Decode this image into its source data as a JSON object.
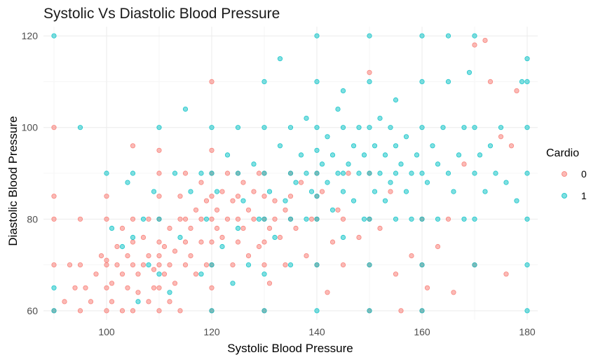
{
  "chart_data": {
    "type": "scatter",
    "title": "Systolic Vs Diastolic Blood Pressure",
    "xlabel": "Systolic Blood Pressure",
    "ylabel": "Diastolic Blood Pressure",
    "xlim": [
      88,
      182
    ],
    "ylim": [
      58,
      122
    ],
    "x_ticks": [
      100,
      120,
      140,
      160,
      180
    ],
    "y_ticks": [
      60,
      80,
      100,
      120
    ],
    "x_tick_labels": [
      "100",
      "120",
      "140",
      "160",
      "180"
    ],
    "y_tick_labels": [
      "60",
      "80",
      "100",
      "120"
    ],
    "grid": true,
    "legend": {
      "title": "Cardio",
      "position": "right",
      "entries": [
        {
          "label": "0",
          "color": "#F8766D"
        },
        {
          "label": "1",
          "color": "#00BFC4"
        }
      ]
    },
    "series": [
      {
        "name": "0",
        "color": "#F8766D",
        "points": [
          [
            90,
            60
          ],
          [
            90,
            70
          ],
          [
            90,
            80
          ],
          [
            90,
            85
          ],
          [
            90,
            100
          ],
          [
            92,
            62
          ],
          [
            93,
            70
          ],
          [
            94,
            65
          ],
          [
            95,
            60
          ],
          [
            95,
            70
          ],
          [
            95,
            80
          ],
          [
            96,
            65
          ],
          [
            97,
            62
          ],
          [
            98,
            68
          ],
          [
            99,
            72
          ],
          [
            100,
            60
          ],
          [
            100,
            65
          ],
          [
            100,
            70
          ],
          [
            100,
            71
          ],
          [
            100,
            80
          ],
          [
            100,
            85
          ],
          [
            101,
            62
          ],
          [
            101,
            66
          ],
          [
            102,
            70
          ],
          [
            102,
            74
          ],
          [
            103,
            60
          ],
          [
            103,
            68
          ],
          [
            103,
            78
          ],
          [
            104,
            65
          ],
          [
            104,
            72
          ],
          [
            105,
            60
          ],
          [
            105,
            70
          ],
          [
            105,
            75
          ],
          [
            105,
            80
          ],
          [
            105,
            96
          ],
          [
            106,
            64
          ],
          [
            106,
            68
          ],
          [
            107,
            70
          ],
          [
            107,
            76
          ],
          [
            108,
            62
          ],
          [
            108,
            72
          ],
          [
            108,
            80
          ],
          [
            109,
            65
          ],
          [
            109,
            69
          ],
          [
            110,
            60
          ],
          [
            110,
            65
          ],
          [
            110,
            70
          ],
          [
            110,
            72
          ],
          [
            110,
            75
          ],
          [
            110,
            80
          ],
          [
            110,
            85
          ],
          [
            110,
            90
          ],
          [
            110,
            95
          ],
          [
            111,
            68
          ],
          [
            111,
            74
          ],
          [
            112,
            62
          ],
          [
            112,
            70
          ],
          [
            112,
            78
          ],
          [
            113,
            66
          ],
          [
            113,
            73
          ],
          [
            114,
            60
          ],
          [
            114,
            80
          ],
          [
            114,
            85
          ],
          [
            115,
            70
          ],
          [
            115,
            75
          ],
          [
            115,
            80
          ],
          [
            115,
            90
          ],
          [
            116,
            72
          ],
          [
            116,
            78
          ],
          [
            117,
            68
          ],
          [
            117,
            82
          ],
          [
            118,
            75
          ],
          [
            118,
            80
          ],
          [
            118,
            88
          ],
          [
            119,
            70
          ],
          [
            119,
            84
          ],
          [
            120,
            60
          ],
          [
            120,
            65
          ],
          [
            120,
            70
          ],
          [
            120,
            75
          ],
          [
            120,
            80
          ],
          [
            120,
            85
          ],
          [
            120,
            90
          ],
          [
            120,
            95
          ],
          [
            120,
            110
          ],
          [
            121,
            78
          ],
          [
            121,
            82
          ],
          [
            122,
            76
          ],
          [
            122,
            86
          ],
          [
            123,
            80
          ],
          [
            123,
            90
          ],
          [
            124,
            70
          ],
          [
            124,
            84
          ],
          [
            125,
            75
          ],
          [
            125,
            80
          ],
          [
            125,
            85
          ],
          [
            125,
            90
          ],
          [
            126,
            78
          ],
          [
            126,
            88
          ],
          [
            127,
            72
          ],
          [
            127,
            82
          ],
          [
            128,
            80
          ],
          [
            128,
            86
          ],
          [
            129,
            74
          ],
          [
            129,
            90
          ],
          [
            130,
            60
          ],
          [
            130,
            70
          ],
          [
            130,
            75
          ],
          [
            130,
            80
          ],
          [
            130,
            85
          ],
          [
            130,
            90
          ],
          [
            131,
            66
          ],
          [
            131,
            78
          ],
          [
            132,
            80
          ],
          [
            132,
            84
          ],
          [
            133,
            76
          ],
          [
            134,
            70
          ],
          [
            134,
            82
          ],
          [
            135,
            80
          ],
          [
            135,
            85
          ],
          [
            135,
            90
          ],
          [
            136,
            78
          ],
          [
            137,
            88
          ],
          [
            138,
            72
          ],
          [
            139,
            80
          ],
          [
            140,
            70
          ],
          [
            140,
            80
          ],
          [
            140,
            85
          ],
          [
            140,
            90
          ],
          [
            141,
            86
          ],
          [
            142,
            64
          ],
          [
            143,
            75
          ],
          [
            144,
            82
          ],
          [
            145,
            70
          ],
          [
            145,
            80
          ],
          [
            146,
            90
          ],
          [
            148,
            76
          ],
          [
            150,
            60
          ],
          [
            150,
            70
          ],
          [
            150,
            80
          ],
          [
            150,
            90
          ],
          [
            150,
            112
          ],
          [
            152,
            78
          ],
          [
            154,
            86
          ],
          [
            155,
            68
          ],
          [
            156,
            60
          ],
          [
            158,
            72
          ],
          [
            160,
            60
          ],
          [
            160,
            70
          ],
          [
            160,
            80
          ],
          [
            161,
            65
          ],
          [
            163,
            74
          ],
          [
            165,
            80
          ],
          [
            166,
            64
          ],
          [
            168,
            92
          ],
          [
            170,
            70
          ],
          [
            170,
            118
          ],
          [
            172,
            119
          ],
          [
            173,
            110
          ],
          [
            175,
            98
          ],
          [
            176,
            68
          ],
          [
            177,
            96
          ],
          [
            178,
            108
          ]
        ]
      },
      {
        "name": "1",
        "color": "#00BFC4",
        "points": [
          [
            90,
            60
          ],
          [
            90,
            65
          ],
          [
            90,
            120
          ],
          [
            95,
            100
          ],
          [
            100,
            90
          ],
          [
            101,
            78
          ],
          [
            103,
            74
          ],
          [
            104,
            88
          ],
          [
            105,
            76
          ],
          [
            105,
            90
          ],
          [
            106,
            62
          ],
          [
            107,
            80
          ],
          [
            108,
            70
          ],
          [
            109,
            86
          ],
          [
            110,
            68
          ],
          [
            110,
            80
          ],
          [
            110,
            100
          ],
          [
            112,
            64
          ],
          [
            113,
            90
          ],
          [
            114,
            76
          ],
          [
            115,
            104
          ],
          [
            116,
            86
          ],
          [
            118,
            68
          ],
          [
            118,
            90
          ],
          [
            119,
            80
          ],
          [
            120,
            60
          ],
          [
            120,
            70
          ],
          [
            120,
            90
          ],
          [
            120,
            100
          ],
          [
            121,
            86
          ],
          [
            122,
            74
          ],
          [
            123,
            94
          ],
          [
            124,
            66
          ],
          [
            125,
            78
          ],
          [
            125,
            90
          ],
          [
            125,
            100
          ],
          [
            126,
            84
          ],
          [
            127,
            70
          ],
          [
            128,
            92
          ],
          [
            129,
            80
          ],
          [
            130,
            60
          ],
          [
            130,
            68
          ],
          [
            130,
            80
          ],
          [
            130,
            90
          ],
          [
            130,
            100
          ],
          [
            130,
            110
          ],
          [
            131,
            86
          ],
          [
            132,
            76
          ],
          [
            133,
            96
          ],
          [
            133,
            115
          ],
          [
            134,
            84
          ],
          [
            135,
            70
          ],
          [
            135,
            80
          ],
          [
            135,
            90
          ],
          [
            135,
            100
          ],
          [
            136,
            88
          ],
          [
            137,
            94
          ],
          [
            138,
            80
          ],
          [
            138,
            90
          ],
          [
            138,
            102
          ],
          [
            139,
            86
          ],
          [
            140,
            60
          ],
          [
            140,
            70
          ],
          [
            140,
            80
          ],
          [
            140,
            85
          ],
          [
            140,
            90
          ],
          [
            140,
            95
          ],
          [
            140,
            100
          ],
          [
            140,
            110
          ],
          [
            140,
            120
          ],
          [
            141,
            92
          ],
          [
            142,
            88
          ],
          [
            142,
            98
          ],
          [
            143,
            82
          ],
          [
            143,
            94
          ],
          [
            144,
            90
          ],
          [
            144,
            104
          ],
          [
            145,
            76
          ],
          [
            145,
            86
          ],
          [
            145,
            90
          ],
          [
            145,
            100
          ],
          [
            145,
            108
          ],
          [
            146,
            92
          ],
          [
            147,
            84
          ],
          [
            147,
            96
          ],
          [
            148,
            90
          ],
          [
            148,
            100
          ],
          [
            149,
            80
          ],
          [
            149,
            94
          ],
          [
            150,
            60
          ],
          [
            150,
            70
          ],
          [
            150,
            80
          ],
          [
            150,
            90
          ],
          [
            150,
            100
          ],
          [
            150,
            110
          ],
          [
            150,
            120
          ],
          [
            151,
            86
          ],
          [
            151,
            96
          ],
          [
            152,
            90
          ],
          [
            152,
            102
          ],
          [
            153,
            84
          ],
          [
            153,
            94
          ],
          [
            154,
            88
          ],
          [
            154,
            100
          ],
          [
            155,
            80
          ],
          [
            155,
            90
          ],
          [
            155,
            96
          ],
          [
            155,
            106
          ],
          [
            156,
            92
          ],
          [
            157,
            86
          ],
          [
            157,
            98
          ],
          [
            158,
            80
          ],
          [
            158,
            90
          ],
          [
            159,
            94
          ],
          [
            160,
            60
          ],
          [
            160,
            70
          ],
          [
            160,
            80
          ],
          [
            160,
            90
          ],
          [
            160,
            100
          ],
          [
            160,
            110
          ],
          [
            160,
            120
          ],
          [
            161,
            88
          ],
          [
            162,
            96
          ],
          [
            163,
            80
          ],
          [
            163,
            92
          ],
          [
            164,
            100
          ],
          [
            165,
            90
          ],
          [
            165,
            110
          ],
          [
            165,
            120
          ],
          [
            166,
            86
          ],
          [
            167,
            94
          ],
          [
            168,
            80
          ],
          [
            168,
            100
          ],
          [
            169,
            112
          ],
          [
            170,
            70
          ],
          [
            170,
            80
          ],
          [
            170,
            90
          ],
          [
            170,
            100
          ],
          [
            170,
            120
          ],
          [
            171,
            94
          ],
          [
            172,
            86
          ],
          [
            173,
            96
          ],
          [
            174,
            90
          ],
          [
            175,
            100
          ],
          [
            176,
            88
          ],
          [
            178,
            84
          ],
          [
            179,
            110
          ],
          [
            180,
            60
          ],
          [
            180,
            70
          ],
          [
            180,
            80
          ],
          [
            180,
            90
          ],
          [
            180,
            100
          ],
          [
            180,
            110
          ],
          [
            180,
            115
          ]
        ]
      }
    ]
  }
}
